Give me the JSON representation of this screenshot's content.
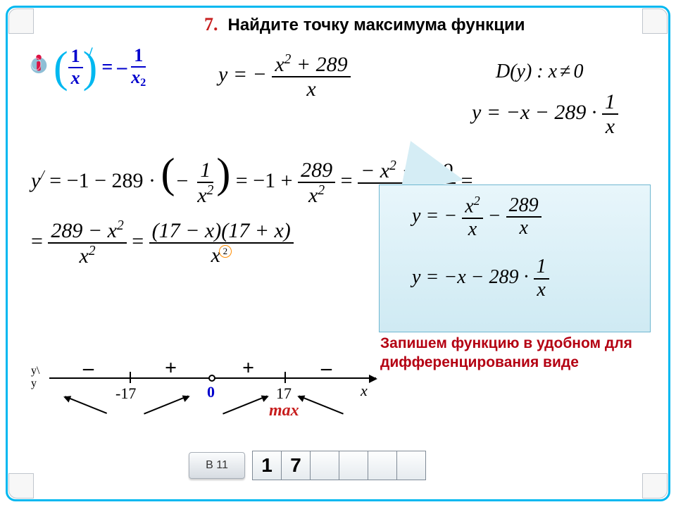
{
  "header": {
    "qnum": "7.",
    "title": "Найдите точку максимума функции"
  },
  "hint": {
    "n1": "1",
    "d1": "x",
    "eq": "=",
    "neg": "–",
    "n2": "1",
    "d2": "x",
    "d2exp": "2"
  },
  "mainfn_html": "y = − <span class='frac'><span class='n'><span style='font-style:italic'>x</span><sup>2</sup> + 289</span><span class='d' style='font-style:italic'>x</span></span>",
  "domain": {
    "lhs": "D(y) :",
    "var": "x",
    "ne": "≠",
    "val": "0"
  },
  "rewrite_html": "y = −<span style='font-style:italic'>x</span> − 289 · <span class='frac'><span class='n'>1</span><span class='d' style='font-style:italic'>x</span></span>",
  "deriv1_html": "<span>y</span><sup>/</sup> <span class='eq'>= −1 − 289 ·</span> <span class='bigparen'>(</span><span style='display:inline-block;text-align:center'>− <span class='frac'><span class='n'>1</span><span class='d'><span style='font-style:italic'>x</span><sup>2</sup></span></span></span><span class='bigparen'>)</span> <span class='eq'>= −1 +</span> <span class='frac'><span class='n'>289</span><span class='d'><span style='font-style:italic'>x</span><sup>2</sup></span></span> <span class='eq'>=</span> <span class='frac'><span class='n'>− <span style='font-style:italic'>x</span><sup>2</sup> + 289</span><span class='d'><span style='font-style:italic'>x</span><span class='expo-circle'>2</span></span></span> <span class='eq'>=</span>",
  "deriv2_html": "<span class='eq'>=</span> <span class='frac'><span class='n'>289 − <span style='font-style:italic'>x</span><sup>2</sup></span><span class='d'><span style='font-style:italic'>x</span><sup>2</sup></span></span> <span class='eq'>=</span> <span class='frac'><span class='n'>(17 − <span style='font-style:italic'>x</span>)(17 + <span style='font-style:italic'>x</span>)</span><span class='d'><span style='font-style:italic'>x</span><span class='expo-circle'>2</span></span></span>",
  "callout": {
    "line1_html": "y = − <span class='frac'><span class='n'><span style='font-style:italic'>x</span><sup>2</sup></span><span class='d' style='font-style:italic'>x</span></span> − <span class='frac'><span class='n'>289</span><span class='d' style='font-style:italic'>x</span></span>",
    "line2_html": "y = −<span style='font-style:italic'>x</span> − 289 · <span class='frac'><span class='n'>1</span><span class='d' style='font-style:italic'>x</span></span>",
    "label": "Запишем функцию в удобном для дифференцирования виде"
  },
  "numline": {
    "y1": "y\\",
    "y2": "y",
    "t1": "-17",
    "zero": "0",
    "t2": "17",
    "xvar": "x",
    "s1": "–",
    "s2": "+",
    "s3": "+",
    "s4": "–",
    "max": "max"
  },
  "answer": {
    "btn": "В 11",
    "d": [
      "1",
      "7",
      "",
      "",
      "",
      ""
    ]
  }
}
